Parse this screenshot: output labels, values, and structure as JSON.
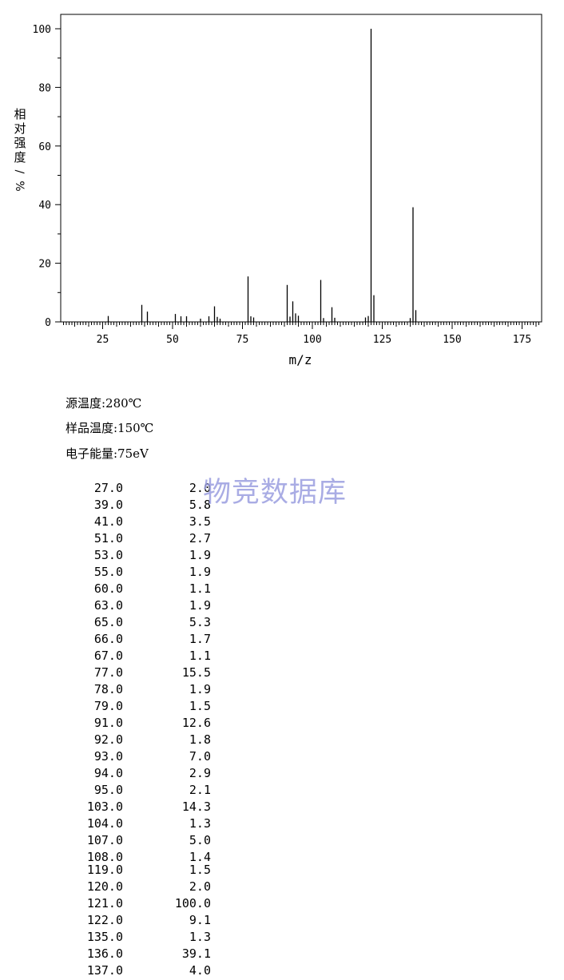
{
  "chart_data": {
    "type": "bar",
    "xlabel": "m/z",
    "ylabel": "相对强度/%",
    "xlim": [
      10,
      182
    ],
    "ylim": [
      0,
      105
    ],
    "xticks_major": [
      25,
      50,
      75,
      100,
      125,
      150,
      175
    ],
    "yticks_major": [
      0,
      20,
      40,
      60,
      80,
      100
    ],
    "grid": false,
    "peaks": [
      {
        "mz": 27.0,
        "intensity": 2.0
      },
      {
        "mz": 39.0,
        "intensity": 5.8
      },
      {
        "mz": 41.0,
        "intensity": 3.5
      },
      {
        "mz": 51.0,
        "intensity": 2.7
      },
      {
        "mz": 53.0,
        "intensity": 1.9
      },
      {
        "mz": 55.0,
        "intensity": 1.9
      },
      {
        "mz": 60.0,
        "intensity": 1.1
      },
      {
        "mz": 63.0,
        "intensity": 1.9
      },
      {
        "mz": 65.0,
        "intensity": 5.3
      },
      {
        "mz": 66.0,
        "intensity": 1.7
      },
      {
        "mz": 67.0,
        "intensity": 1.1
      },
      {
        "mz": 77.0,
        "intensity": 15.5
      },
      {
        "mz": 78.0,
        "intensity": 1.9
      },
      {
        "mz": 79.0,
        "intensity": 1.5
      },
      {
        "mz": 91.0,
        "intensity": 12.6
      },
      {
        "mz": 92.0,
        "intensity": 1.8
      },
      {
        "mz": 93.0,
        "intensity": 7.0
      },
      {
        "mz": 94.0,
        "intensity": 2.9
      },
      {
        "mz": 95.0,
        "intensity": 2.1
      },
      {
        "mz": 103.0,
        "intensity": 14.3
      },
      {
        "mz": 104.0,
        "intensity": 1.3
      },
      {
        "mz": 107.0,
        "intensity": 5.0
      },
      {
        "mz": 108.0,
        "intensity": 1.4
      },
      {
        "mz": 119.0,
        "intensity": 1.5
      },
      {
        "mz": 120.0,
        "intensity": 2.0
      },
      {
        "mz": 121.0,
        "intensity": 100.0
      },
      {
        "mz": 122.0,
        "intensity": 9.1
      },
      {
        "mz": 135.0,
        "intensity": 1.3
      },
      {
        "mz": 136.0,
        "intensity": 39.1
      },
      {
        "mz": 137.0,
        "intensity": 4.0
      }
    ]
  },
  "conditions": {
    "source_temp": "源温度:280℃",
    "sample_temp": "样品温度:150℃",
    "electron_energy": "电子能量:75eV"
  },
  "watermark": "物竞数据库",
  "peak_table": [
    {
      "mz": "27.0",
      "intensity": "2.0"
    },
    {
      "mz": "39.0",
      "intensity": "5.8"
    },
    {
      "mz": "41.0",
      "intensity": "3.5"
    },
    {
      "mz": "51.0",
      "intensity": "2.7"
    },
    {
      "mz": "53.0",
      "intensity": "1.9"
    },
    {
      "mz": "55.0",
      "intensity": "1.9"
    },
    {
      "mz": "60.0",
      "intensity": "1.1"
    },
    {
      "mz": "63.0",
      "intensity": "1.9"
    },
    {
      "mz": "65.0",
      "intensity": "5.3"
    },
    {
      "mz": "66.0",
      "intensity": "1.7"
    },
    {
      "mz": "67.0",
      "intensity": "1.1"
    },
    {
      "mz": "77.0",
      "intensity": "15.5"
    },
    {
      "mz": "78.0",
      "intensity": "1.9"
    },
    {
      "mz": "79.0",
      "intensity": "1.5"
    },
    {
      "mz": "91.0",
      "intensity": "12.6"
    },
    {
      "mz": "92.0",
      "intensity": "1.8"
    },
    {
      "mz": "93.0",
      "intensity": "7.0"
    },
    {
      "mz": "94.0",
      "intensity": "2.9"
    },
    {
      "mz": "95.0",
      "intensity": "2.1"
    },
    {
      "mz": "103.0",
      "intensity": "14.3"
    },
    {
      "mz": "104.0",
      "intensity": "1.3"
    },
    {
      "mz": "107.0",
      "intensity": "5.0"
    },
    {
      "mz": "108.0",
      "intensity": "1.4"
    },
    {
      "mz": "119.0",
      "intensity": "1.5"
    },
    {
      "mz": "120.0",
      "intensity": "2.0"
    },
    {
      "mz": "121.0",
      "intensity": "100.0"
    },
    {
      "mz": "122.0",
      "intensity": "9.1"
    },
    {
      "mz": "135.0",
      "intensity": "1.3"
    },
    {
      "mz": "136.0",
      "intensity": "39.1"
    },
    {
      "mz": "137.0",
      "intensity": "4.0"
    }
  ]
}
